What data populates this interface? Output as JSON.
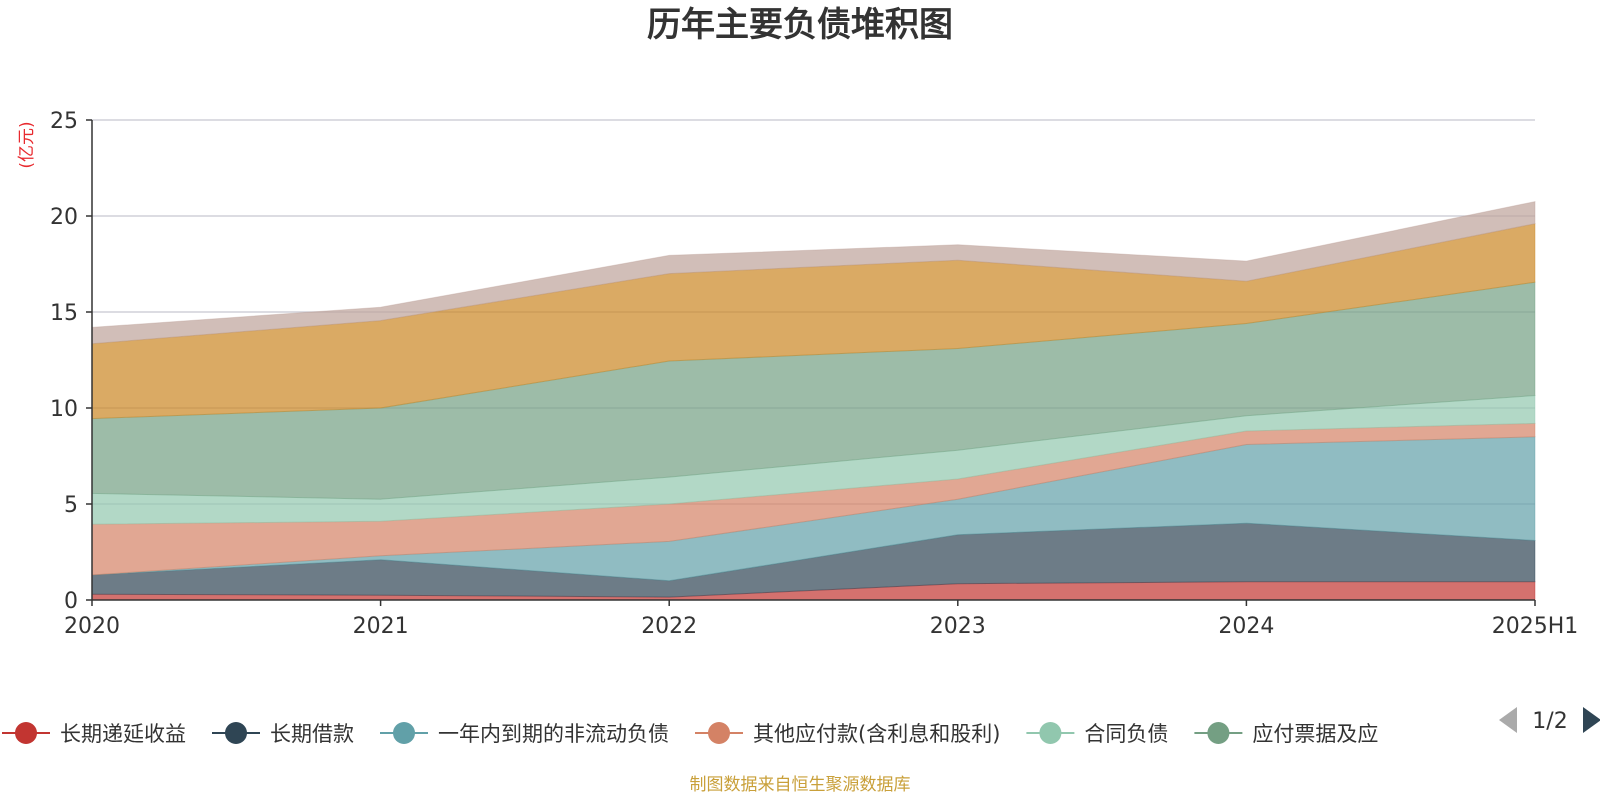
{
  "chart_data": {
    "type": "area",
    "stacked": true,
    "title": "历年主要负债堆积图",
    "y_unit": "(亿元)",
    "categories": [
      "2020",
      "2021",
      "2022",
      "2023",
      "2024",
      "2025H1"
    ],
    "y_ticks": [
      "0",
      "5",
      "10",
      "15",
      "20",
      "25"
    ],
    "ylim": [
      0,
      25
    ],
    "grid": true,
    "series": [
      {
        "name": "长期递延收益",
        "color": "#c23531",
        "values": [
          0.3,
          0.25,
          0.15,
          0.85,
          0.95,
          0.95
        ]
      },
      {
        "name": "长期借款",
        "color": "#2f4554",
        "values": [
          1.0,
          1.85,
          0.85,
          2.55,
          3.05,
          2.15
        ]
      },
      {
        "name": "一年内到期的非流动负债",
        "color": "#61a0a8",
        "values": [
          0.0,
          0.2,
          2.05,
          1.85,
          4.1,
          5.4
        ]
      },
      {
        "name": "其他应付款(含利息和股利)",
        "color": "#d48265",
        "values": [
          2.65,
          1.8,
          1.95,
          1.05,
          0.7,
          0.7
        ]
      },
      {
        "name": "合同负债",
        "color": "#91c7ae",
        "values": [
          1.6,
          1.15,
          1.4,
          1.5,
          0.8,
          1.45
        ]
      },
      {
        "name": "应付票据及应付账款",
        "color": "#749f83",
        "values": [
          3.9,
          4.75,
          6.05,
          5.3,
          4.8,
          5.9
        ]
      },
      {
        "name": "",
        "color": "#ca8622",
        "values": [
          3.9,
          4.55,
          4.55,
          4.6,
          2.2,
          3.05
        ]
      },
      {
        "name": "",
        "color": "#bda29a",
        "values": [
          0.85,
          0.7,
          0.95,
          0.8,
          1.05,
          1.15
        ]
      }
    ],
    "legend_visible": [
      "长期递延收益",
      "长期借款",
      "一年内到期的非流动负债",
      "其他应付款(含利息和股利)",
      "合同负债",
      "应付票据及应"
    ],
    "legend_position": "bottom",
    "legend_page": "1/2",
    "source": "制图数据来自恒生聚源数据库"
  }
}
